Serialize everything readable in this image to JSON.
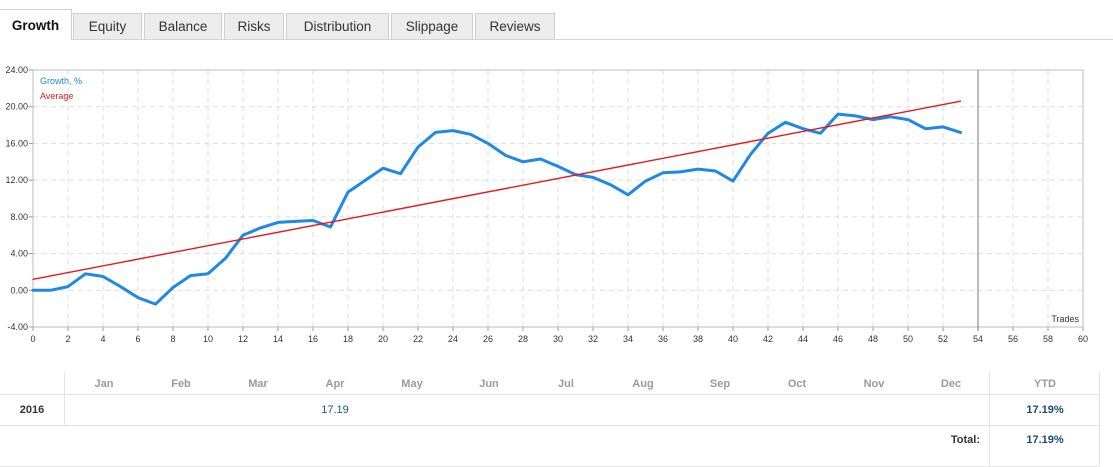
{
  "tabs": [
    {
      "label": "Growth",
      "active": true
    },
    {
      "label": "Equity",
      "active": false
    },
    {
      "label": "Balance",
      "active": false
    },
    {
      "label": "Risks",
      "active": false
    },
    {
      "label": "Distribution",
      "active": false
    },
    {
      "label": "Slippage",
      "active": false
    },
    {
      "label": "Reviews",
      "active": false
    }
  ],
  "chart_data": {
    "type": "line",
    "xlabel": "Trades",
    "ylabel": "",
    "xlim": [
      0,
      60
    ],
    "ylim": [
      -4,
      24
    ],
    "x_ticks": [
      "0",
      "2",
      "4",
      "6",
      "8",
      "10",
      "12",
      "14",
      "16",
      "18",
      "20",
      "22",
      "24",
      "26",
      "28",
      "30",
      "32",
      "34",
      "36",
      "38",
      "40",
      "42",
      "44",
      "46",
      "48",
      "50",
      "52",
      "54",
      "56",
      "58",
      "60"
    ],
    "y_ticks": [
      "-4.00",
      "0.00",
      "4.00",
      "8.00",
      "12.00",
      "16.00",
      "20.00",
      "24.00"
    ],
    "grid": true,
    "legend_position": "top-left",
    "marker_x": 54,
    "series": [
      {
        "name": "Growth, %",
        "color": "#1e88e5",
        "x": [
          0,
          1,
          2,
          3,
          4,
          5,
          6,
          7,
          8,
          9,
          10,
          11,
          12,
          13,
          14,
          15,
          16,
          17,
          18,
          19,
          20,
          21,
          22,
          23,
          24,
          25,
          26,
          27,
          28,
          29,
          30,
          31,
          32,
          33,
          34,
          35,
          36,
          37,
          38,
          39,
          40,
          41,
          42,
          43,
          44,
          45,
          46,
          47,
          48,
          49,
          50,
          51,
          52,
          53
        ],
        "y": [
          0.0,
          0.0,
          0.4,
          1.8,
          1.5,
          0.4,
          -0.8,
          -1.5,
          0.3,
          1.6,
          1.8,
          3.5,
          6.0,
          6.8,
          7.4,
          7.5,
          7.6,
          6.9,
          10.7,
          12.0,
          13.3,
          12.7,
          15.6,
          17.2,
          17.4,
          17.0,
          16.0,
          14.7,
          14.0,
          14.3,
          13.5,
          12.6,
          12.3,
          11.5,
          10.4,
          11.9,
          12.8,
          12.9,
          13.2,
          13.0,
          11.9,
          14.8,
          17.1,
          18.3,
          17.6,
          17.1,
          19.2,
          19.0,
          18.6,
          18.9,
          18.6,
          17.6,
          17.8,
          17.2
        ]
      },
      {
        "name": "Average",
        "color": "#e31a1a",
        "x": [
          0,
          53
        ],
        "y": [
          1.2,
          20.6
        ]
      }
    ]
  },
  "table": {
    "months": [
      "Jan",
      "Feb",
      "Mar",
      "Apr",
      "May",
      "Jun",
      "Jul",
      "Aug",
      "Sep",
      "Oct",
      "Nov",
      "Dec"
    ],
    "ytd_header": "YTD",
    "year": "2016",
    "apr_value": "17.19",
    "ytd_value": "17.19%",
    "total_label": "Total:",
    "total_value": "17.19%"
  }
}
